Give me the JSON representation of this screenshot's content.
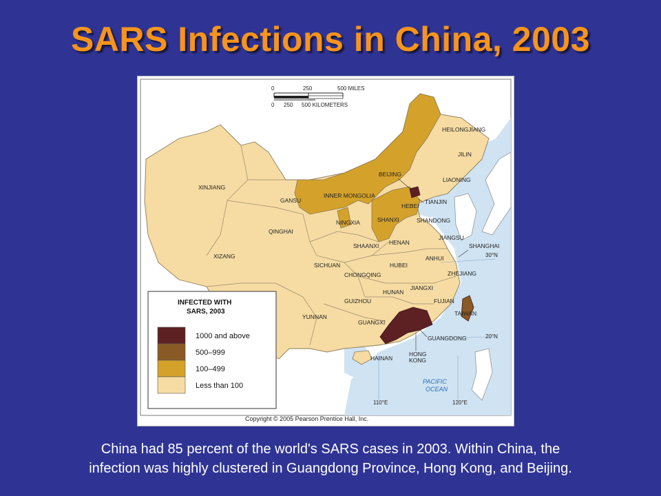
{
  "title": "SARS Infections in China, 2003",
  "caption": {
    "line1": "China had 85 percent of the world's SARS cases in 2003. Within China, the",
    "line2": "infection was highly clustered in Guangdong Province, Hong Kong, and Beijing."
  },
  "map": {
    "scale": {
      "miles_ticks": [
        "0",
        "250",
        "500 MILES"
      ],
      "km_ticks": [
        "0",
        "250",
        "500 KILOMETERS"
      ]
    },
    "copyright": "Copyright © 2005 Pearson Prentice Hall, Inc.",
    "ocean_label_1": "PACIFIC",
    "ocean_label_2": "OCEAN",
    "latitudes": [
      "30°N",
      "20°N"
    ],
    "longitudes": [
      "110°E",
      "120°E"
    ],
    "provinces": {
      "xinjiang": "XINJIANG",
      "gansu": "GANSU",
      "inner_mongolia": "INNER MONGOLIA",
      "heilongjiang": "HEILONGJIANG",
      "jilin": "JILIN",
      "liaoning": "LIAONING",
      "beijing": "BEIJING",
      "hebei": "HEBEI",
      "tianjin": "TIANJIN",
      "ningxia": "NINGXIA",
      "shanxi": "SHANXI",
      "shandong": "SHANDONG",
      "qinghai": "QINGHAI",
      "shaanxi": "SHAANXI",
      "henan": "HENAN",
      "jiangsu": "JIANGSU",
      "shanghai": "SHANGHAI",
      "xizang": "XIZANG",
      "sichuan": "SICHUAN",
      "hubei": "HUBEI",
      "anhui": "ANHUI",
      "chongqing": "CHONGQING",
      "zhejiang": "ZHEJIANG",
      "hunan": "HUNAN",
      "jiangxi": "JIANGXI",
      "guizhou": "GUIZHOU",
      "fujian": "FUJIAN",
      "yunnan": "YUNNAN",
      "guangxi": "GUANGXI",
      "taiwan": "TAIWAN",
      "guangdong": "GUANGDONG",
      "hainan": "HAINAN",
      "hong_kong_1": "HONG",
      "hong_kong_2": "KONG"
    },
    "legend": {
      "title_1": "INFECTED WITH",
      "title_2": "SARS, 2003",
      "items": [
        {
          "label": "1000 and above",
          "color": "#5e2123"
        },
        {
          "label": "500–999",
          "color": "#8a5a26"
        },
        {
          "label": "100–499",
          "color": "#d4a22a"
        },
        {
          "label": "Less than 100",
          "color": "#f6dca3"
        }
      ]
    },
    "colors": {
      "ocean": "#cfe3f2",
      "land_foreign": "#ffffff",
      "less_than_100": "#f6dca3",
      "c100_499": "#d4a22a",
      "c1000_plus": "#5e2123"
    }
  }
}
